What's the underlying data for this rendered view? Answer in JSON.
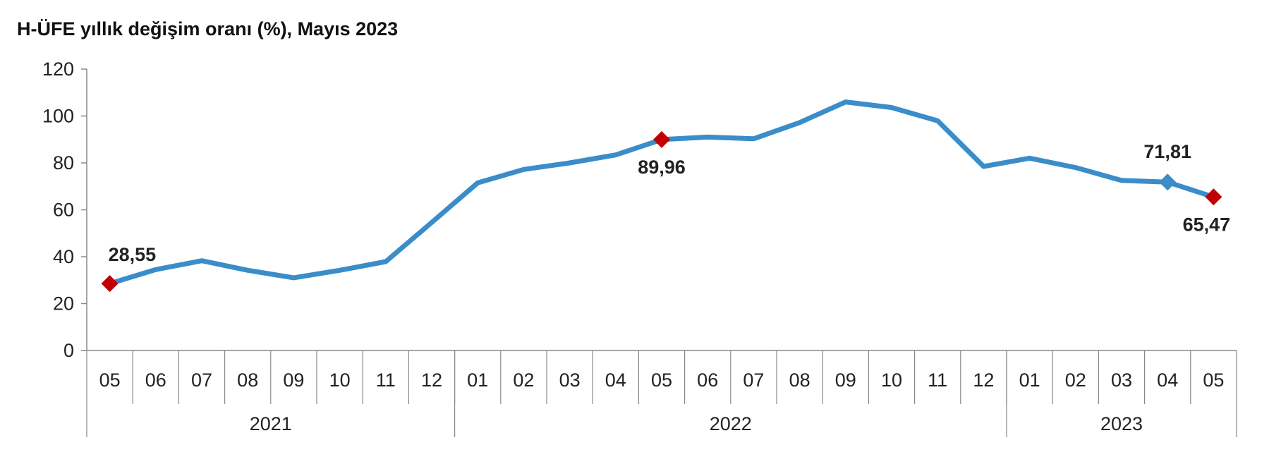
{
  "chart_data": {
    "type": "line",
    "title": "H-ÜFE yıllık değişim oranı (%), Mayıs 2023",
    "xlabel": "",
    "ylabel": "",
    "ylim": [
      0,
      120
    ],
    "yticks": [
      0,
      20,
      40,
      60,
      80,
      100,
      120
    ],
    "grid": false,
    "categories": [
      "05",
      "06",
      "07",
      "08",
      "09",
      "10",
      "11",
      "12",
      "01",
      "02",
      "03",
      "04",
      "05",
      "06",
      "07",
      "08",
      "09",
      "10",
      "11",
      "12",
      "01",
      "02",
      "03",
      "04",
      "05"
    ],
    "year_groups": [
      {
        "label": "2021",
        "count": 8
      },
      {
        "label": "2022",
        "count": 12
      },
      {
        "label": "2023",
        "count": 5
      }
    ],
    "series": [
      {
        "values": [
          28.55,
          34.5,
          38.3,
          34.2,
          31.0,
          34.2,
          37.9,
          54.6,
          71.5,
          77.2,
          80.0,
          83.4,
          89.96,
          91.0,
          90.3,
          97.2,
          106.0,
          103.6,
          98.0,
          78.5,
          82.0,
          78.0,
          72.5,
          71.81,
          65.47
        ],
        "color": "#3A8DC9"
      }
    ],
    "markers": [
      {
        "index": 0,
        "label": "28,55",
        "color": "#C00000"
      },
      {
        "index": 12,
        "label": "89,96",
        "color": "#C00000"
      },
      {
        "index": 23,
        "label": "71,81",
        "color": "#3A8DC9"
      },
      {
        "index": 24,
        "label": "65,47",
        "color": "#C00000"
      }
    ]
  }
}
